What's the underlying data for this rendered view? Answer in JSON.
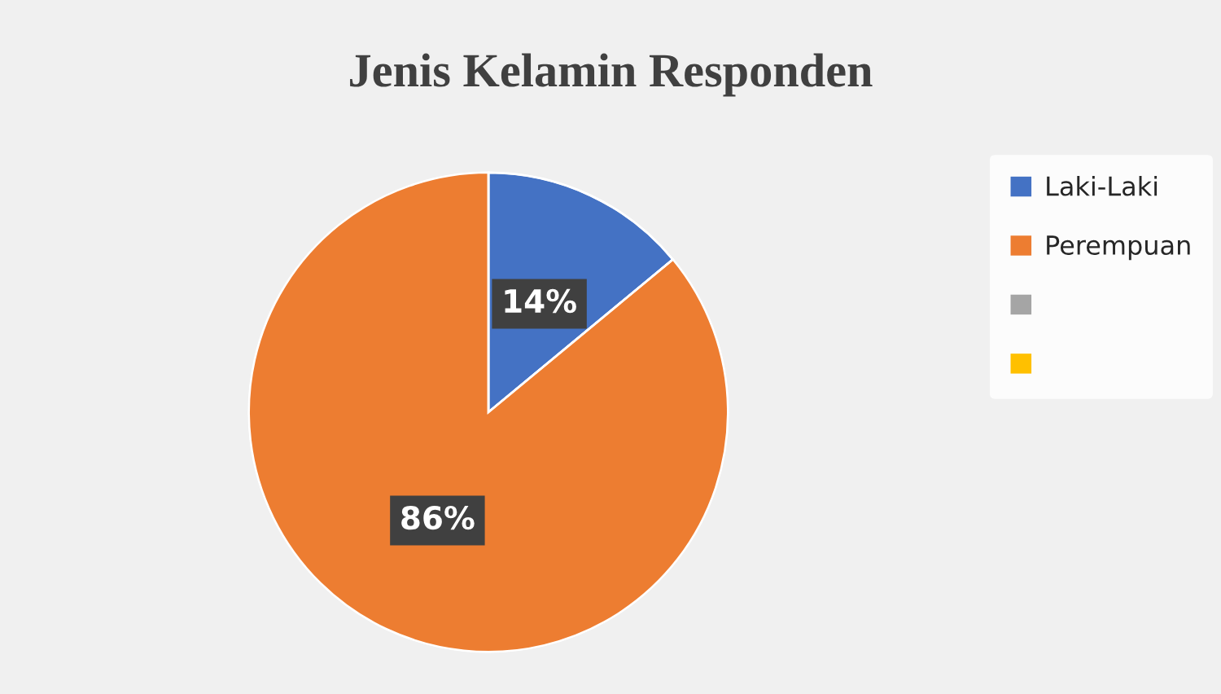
{
  "chart_data": {
    "type": "pie",
    "title": "Jenis Kelamin Responden",
    "categories": [
      "Laki-Laki",
      "Perempuan",
      null,
      null
    ],
    "values": [
      14,
      86,
      0,
      0
    ],
    "value_labels": [
      "14%",
      "86%",
      null,
      null
    ],
    "colors": [
      "#4472c4",
      "#ed7d31",
      "#a5a5a5",
      "#ffc000"
    ],
    "legend": "right"
  }
}
